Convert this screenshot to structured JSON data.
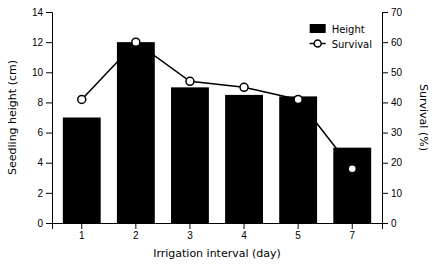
{
  "chart_data": {
    "type": "bar",
    "xlabel": "Irrigation interval (day)",
    "ylabel": "Seedling height (cm)",
    "y2label": "Survival (%)",
    "categories": [
      1,
      2,
      3,
      4,
      5,
      7
    ],
    "series": [
      {
        "name": "Height",
        "type": "bar",
        "color": "#000000",
        "values": [
          7.0,
          12.0,
          9.0,
          8.5,
          8.4,
          5.0
        ]
      },
      {
        "name": "Survival",
        "type": "line",
        "color": "#000000",
        "marker": "circle",
        "axis": "y2",
        "values": [
          41,
          60,
          47,
          45,
          41,
          18
        ]
      }
    ],
    "ylim": [
      0,
      14
    ],
    "yticks": [
      0,
      2,
      4,
      6,
      8,
      10,
      12,
      14
    ],
    "y2lim": [
      0,
      70
    ],
    "y2ticks": [
      0,
      10,
      20,
      30,
      40,
      50,
      60,
      70
    ],
    "legend": "upper right"
  }
}
